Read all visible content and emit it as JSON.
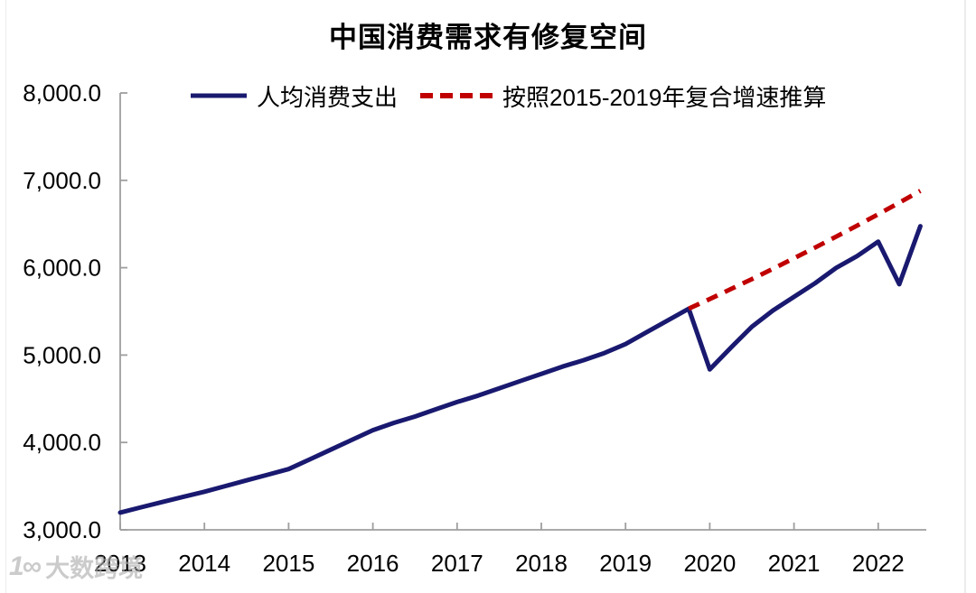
{
  "page": {
    "background": "#ffffff"
  },
  "chart_data": {
    "type": "line",
    "title": "中国消费需求有修复空间",
    "legend_position": "top",
    "grid": false,
    "x_axis": {
      "range": [
        2013,
        2022.6
      ],
      "ticks": [
        {
          "value": 2013,
          "label": "2013"
        },
        {
          "value": 2014,
          "label": "2014"
        },
        {
          "value": 2015,
          "label": "2015"
        },
        {
          "value": 2016,
          "label": "2016"
        },
        {
          "value": 2017,
          "label": "2017"
        },
        {
          "value": 2018,
          "label": "2018"
        },
        {
          "value": 2019,
          "label": "2019"
        },
        {
          "value": 2020,
          "label": "2020"
        },
        {
          "value": 2021,
          "label": "2021"
        },
        {
          "value": 2022,
          "label": "2022"
        }
      ]
    },
    "y_axis": {
      "range": [
        3000,
        8000
      ],
      "ticks": [
        {
          "value": 3000,
          "label": "3,000.0"
        },
        {
          "value": 4000,
          "label": "4,000.0"
        },
        {
          "value": 5000,
          "label": "5,000.0"
        },
        {
          "value": 6000,
          "label": "6,000.0"
        },
        {
          "value": 7000,
          "label": "7,000.0"
        },
        {
          "value": 8000,
          "label": "8,000.0"
        }
      ]
    },
    "series": [
      {
        "name": "人均消费支出",
        "color": "#191970",
        "dash": null,
        "x_start": 2013.0,
        "x_step": 0.25,
        "values": [
          3197,
          3258,
          3318,
          3378,
          3436,
          3501,
          3566,
          3630,
          3695,
          3806,
          3917,
          4029,
          4140,
          4224,
          4297,
          4380,
          4463,
          4536,
          4619,
          4702,
          4785,
          4868,
          4941,
          5024,
          5126,
          5261,
          5396,
          5531,
          4836,
          5085,
          5324,
          5510,
          5666,
          5822,
          5998,
          6133,
          6299,
          5811,
          6475
        ]
      },
      {
        "name": "按照2015-2019年复合增速推算",
        "color": "#C00000",
        "dash": "13 9",
        "x_start": 2019.75,
        "x_step": 0.25,
        "values": [
          5531,
          5642,
          5755,
          5870,
          5988,
          6108,
          6230,
          6355,
          6482,
          6612,
          6744,
          6880
        ]
      }
    ],
    "axis_color": "#9e9e9e",
    "text_color": "#000000"
  },
  "watermark": {
    "logo": "1∞",
    "text": "大数跨境"
  }
}
